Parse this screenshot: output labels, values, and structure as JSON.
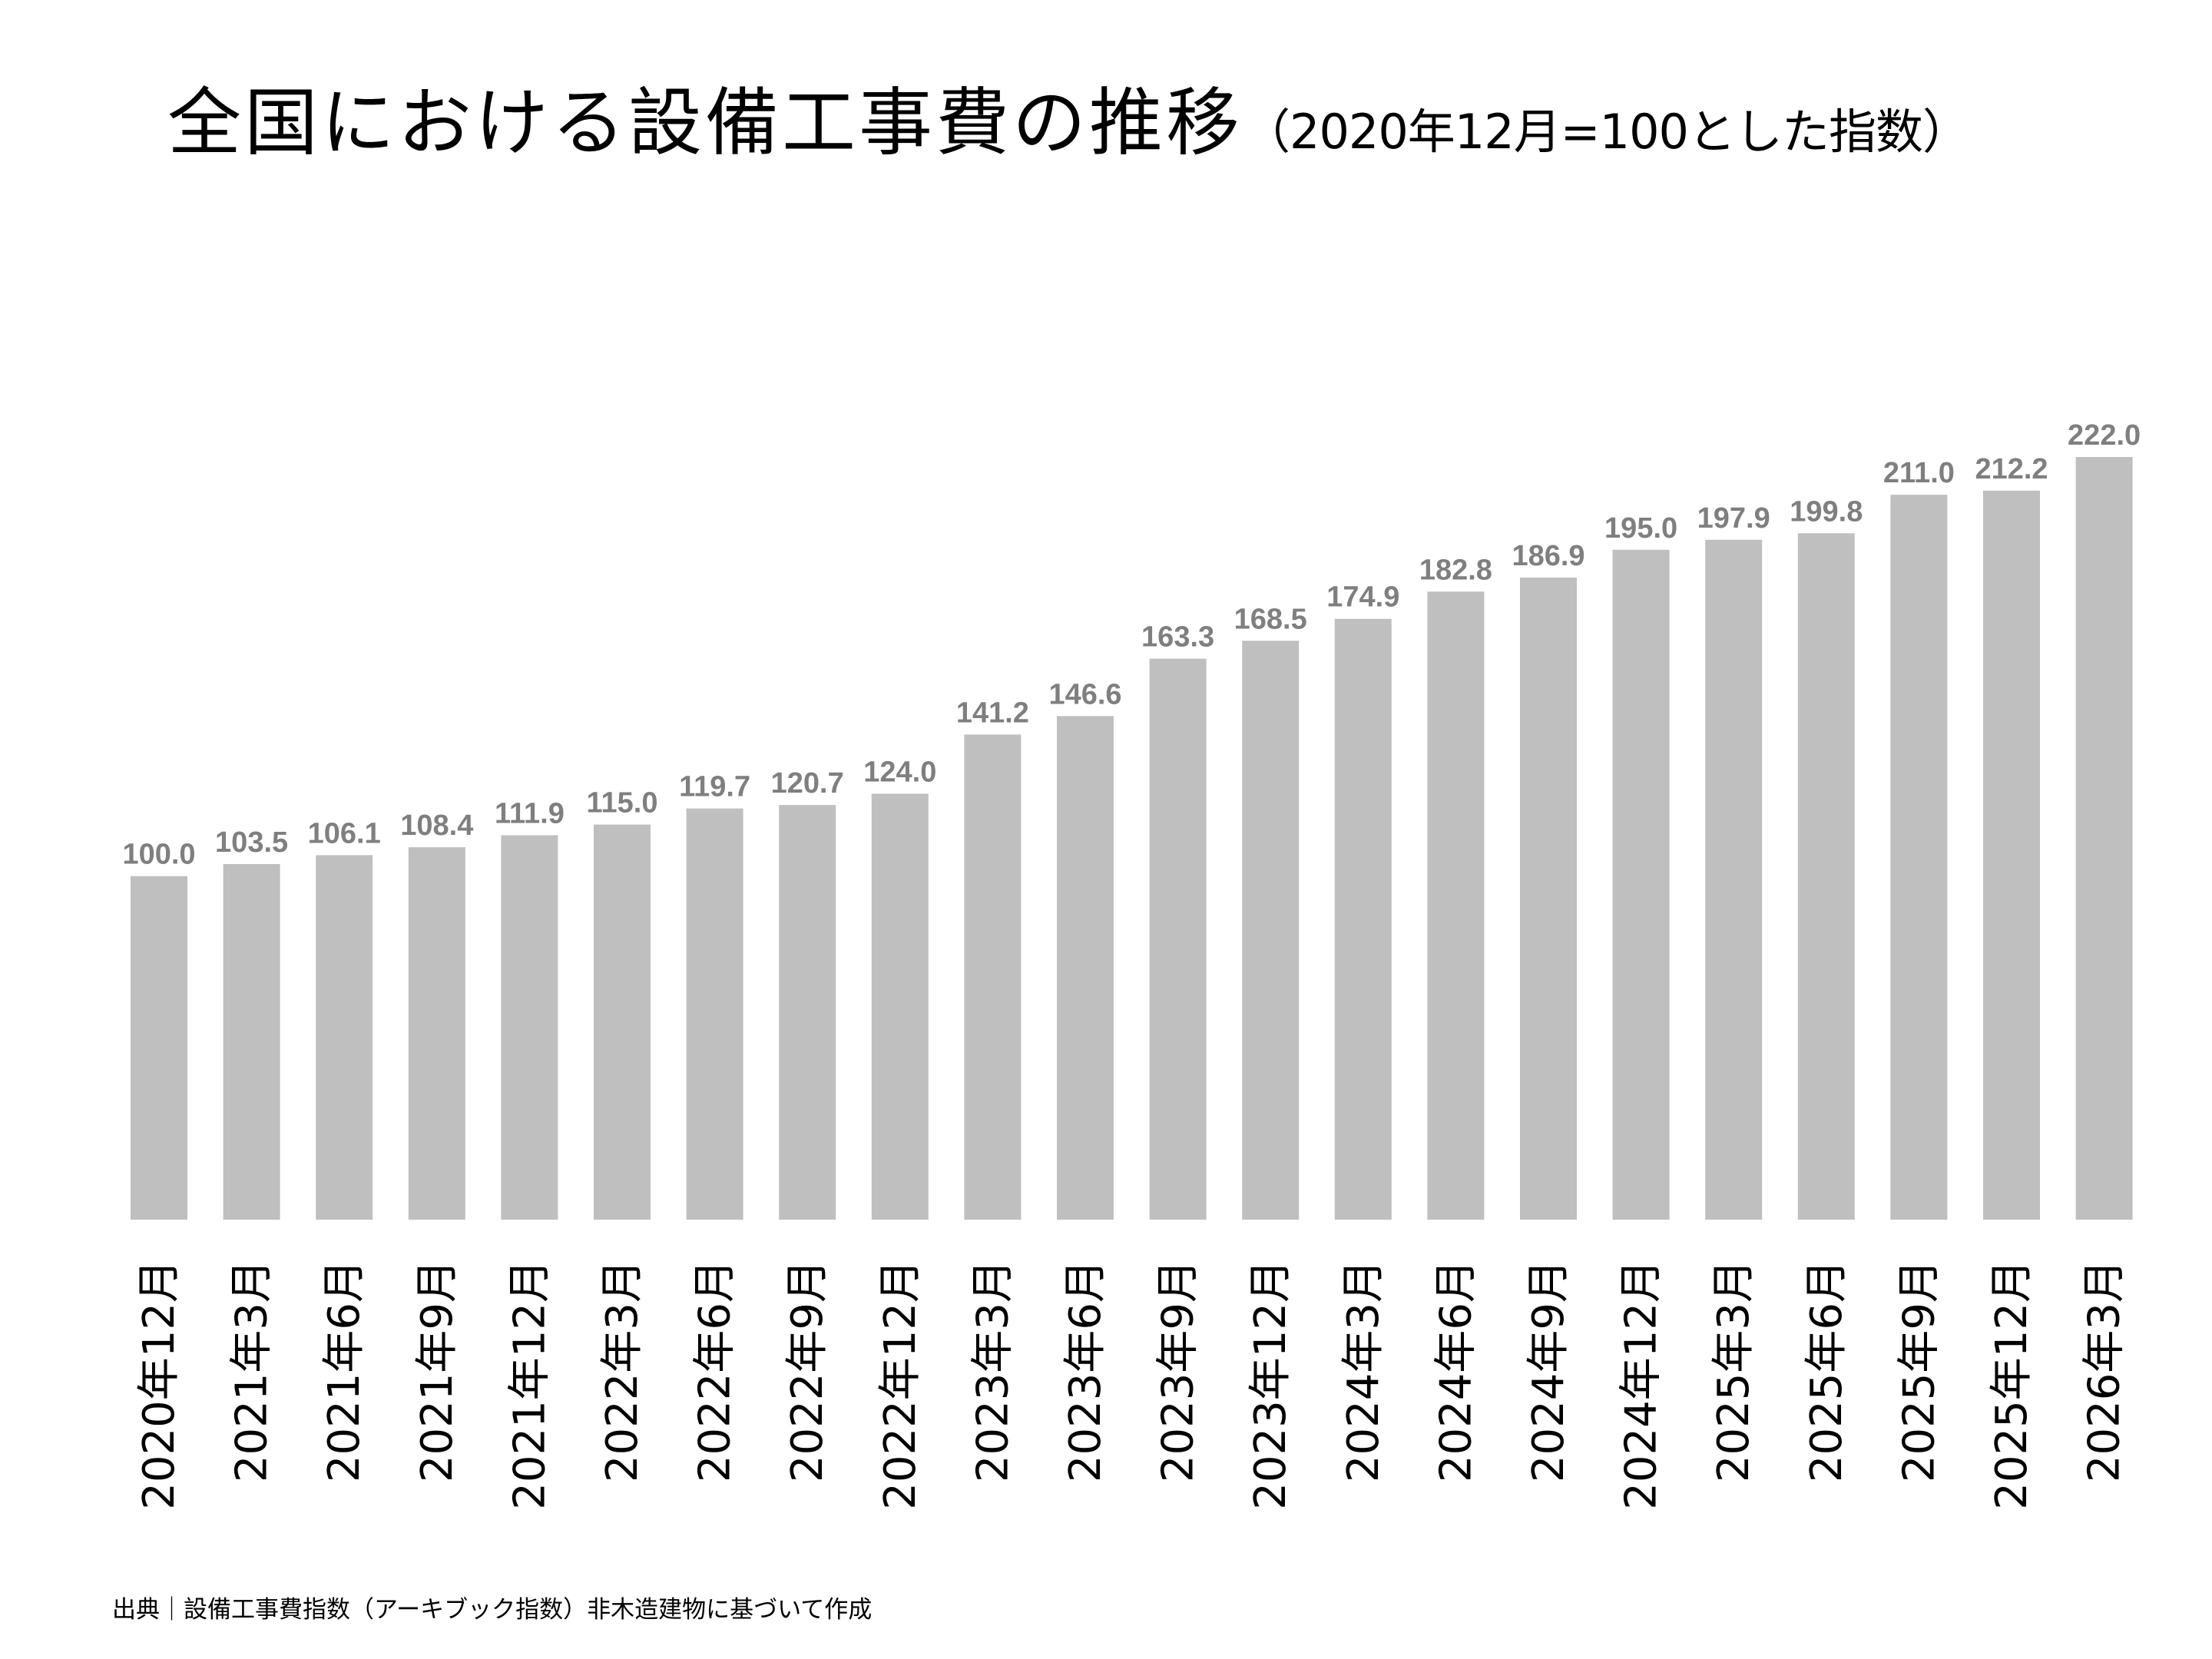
{
  "title": {
    "main": "全国における設備工事費の推移",
    "sub": "（2020年12月=100とした指数）"
  },
  "source": "出典｜設備工事費指数（アーキブック指数）非木造建物に基づいて作成",
  "colors": {
    "bar": "#bfbfbf",
    "data_label": "#7f7f7f",
    "text": "#000000",
    "background": "#ffffff"
  },
  "chart_data": {
    "type": "bar",
    "title": "全国における設備工事費の推移（2020年12月=100とした指数）",
    "xlabel": "",
    "ylabel": "",
    "grid": false,
    "legend": "none",
    "ylim": [
      0,
      222
    ],
    "categories": [
      "2020年12月",
      "2021年3月",
      "2021年6月",
      "2021年9月",
      "2021年12月",
      "2022年3月",
      "2022年6月",
      "2022年9月",
      "2022年12月",
      "2023年3月",
      "2023年6月",
      "2023年9月",
      "2023年12月",
      "2024年3月",
      "2024年6月",
      "2024年9月",
      "2024年12月",
      "2025年3月",
      "2025年6月",
      "2025年9月",
      "2025年12月",
      "2026年3月"
    ],
    "values": [
      100.0,
      103.5,
      106.1,
      108.4,
      111.9,
      115.0,
      119.7,
      120.7,
      124.0,
      141.2,
      146.6,
      163.3,
      168.5,
      174.9,
      182.8,
      186.9,
      195.0,
      197.9,
      199.8,
      211.0,
      212.2,
      222.0
    ],
    "data_labels": [
      "100.0",
      "103.5",
      "106.1",
      "108.4",
      "111.9",
      "115.0",
      "119.7",
      "120.7",
      "124.0",
      "141.2",
      "146.6",
      "163.3",
      "168.5",
      "174.9",
      "182.8",
      "186.9",
      "195.0",
      "197.9",
      "199.8",
      "211.0",
      "212.2",
      "222.0"
    ]
  }
}
